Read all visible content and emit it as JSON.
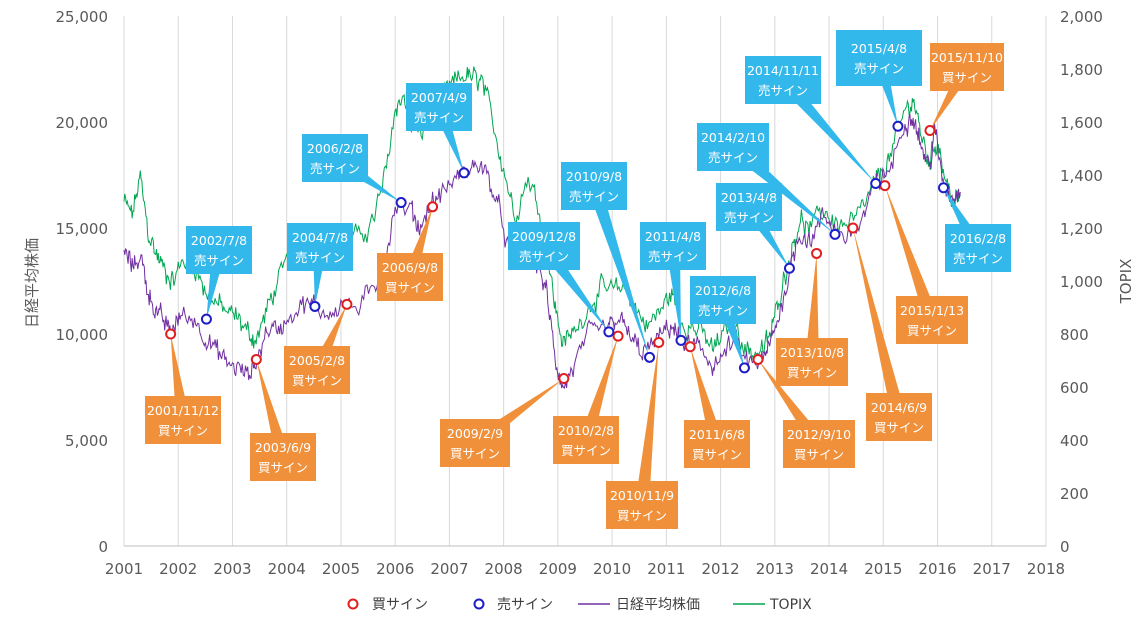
{
  "chart_data": {
    "type": "line",
    "xlabel": "",
    "ylabel_left": "日経平均株価",
    "ylabel_right": "TOPIX",
    "x_ticks": [
      "2001",
      "2002",
      "2003",
      "2004",
      "2005",
      "2006",
      "2007",
      "2008",
      "2009",
      "2010",
      "2011",
      "2012",
      "2013",
      "2014",
      "2015",
      "2016",
      "2017",
      "2018"
    ],
    "xlim": [
      2001,
      2018
    ],
    "ylim_left": [
      0,
      25000
    ],
    "ylim_right": [
      0,
      2000
    ],
    "y_ticks_left": [
      "0",
      "5,000",
      "10,000",
      "15,000",
      "20,000",
      "25,000"
    ],
    "y_ticks_right": [
      "0",
      "200",
      "400",
      "600",
      "800",
      "1,000",
      "1,200",
      "1,400",
      "1,600",
      "1,800",
      "2,000"
    ],
    "grid": "vertical",
    "legend_position": "bottom",
    "legend": {
      "buy_label": "買サイン",
      "sell_label": "売サイン",
      "nikkei_label": "日経平均株価",
      "topix_label": "TOPIX"
    },
    "colors": {
      "nikkei": "#7030A0",
      "topix": "#00A651",
      "buy_marker": "#E02020",
      "sell_marker": "#1E1EC8",
      "buy_callout": "#F0903A",
      "sell_callout": "#33B8EC",
      "grid": "#D9D9D9"
    },
    "nikkei_series": {
      "name": "日経平均株価",
      "x": [
        2001.0,
        2001.15,
        2001.3,
        2001.45,
        2001.6,
        2001.75,
        2001.87,
        2002.05,
        2002.3,
        2002.5,
        2002.7,
        2002.9,
        2003.1,
        2003.3,
        2003.45,
        2003.65,
        2003.85,
        2004.05,
        2004.3,
        2004.5,
        2004.75,
        2005.0,
        2005.3,
        2005.6,
        2005.8,
        2006.0,
        2006.3,
        2006.45,
        2006.65,
        2006.85,
        2007.1,
        2007.35,
        2007.55,
        2007.75,
        2007.95,
        2008.2,
        2008.45,
        2008.65,
        2008.8,
        2008.95,
        2009.1,
        2009.3,
        2009.55,
        2009.8,
        2009.95,
        2010.1,
        2010.3,
        2010.5,
        2010.7,
        2010.9,
        2011.1,
        2011.25,
        2011.45,
        2011.65,
        2011.85,
        2012.0,
        2012.25,
        2012.45,
        2012.6,
        2012.8,
        2012.95,
        2013.1,
        2013.3,
        2013.45,
        2013.65,
        2013.9,
        2014.1,
        2014.35,
        2014.6,
        2014.8,
        2014.95,
        2015.15,
        2015.4,
        2015.55,
        2015.7,
        2015.85,
        2015.95,
        2016.1,
        2016.25,
        2016.42
      ],
      "values": [
        13900,
        13200,
        13700,
        12000,
        11000,
        10500,
        10100,
        10900,
        10700,
        9900,
        9200,
        8600,
        8400,
        8000,
        8800,
        10300,
        10200,
        10900,
        11400,
        11300,
        11000,
        11400,
        11200,
        12000,
        13300,
        16000,
        15800,
        15000,
        16100,
        16600,
        17300,
        17700,
        18100,
        17200,
        15500,
        13000,
        13800,
        13200,
        11800,
        8800,
        7400,
        8500,
        9900,
        10200,
        10300,
        10800,
        10000,
        9200,
        9300,
        9900,
        10500,
        9600,
        9500,
        9200,
        8600,
        8700,
        9800,
        8700,
        8600,
        8700,
        9800,
        11100,
        13300,
        14800,
        14400,
        15500,
        15000,
        14600,
        15300,
        16700,
        17300,
        17900,
        20000,
        20400,
        18900,
        17800,
        19600,
        17200,
        16500,
        16700
      ]
    },
    "topix_series": {
      "name": "TOPIX",
      "x": [
        2001.0,
        2001.15,
        2001.3,
        2001.45,
        2001.6,
        2001.75,
        2001.9,
        2002.1,
        2002.3,
        2002.5,
        2002.7,
        2002.9,
        2003.1,
        2003.3,
        2003.45,
        2003.65,
        2003.85,
        2004.1,
        2004.3,
        2004.5,
        2004.75,
        2005.0,
        2005.3,
        2005.6,
        2005.8,
        2006.0,
        2006.15,
        2006.3,
        2006.5,
        2006.7,
        2006.9,
        2007.1,
        2007.3,
        2007.45,
        2007.6,
        2007.8,
        2008.0,
        2008.2,
        2008.45,
        2008.65,
        2008.8,
        2008.95,
        2009.1,
        2009.3,
        2009.55,
        2009.8,
        2010.0,
        2010.25,
        2010.45,
        2010.65,
        2010.9,
        2011.1,
        2011.25,
        2011.45,
        2011.65,
        2011.85,
        2012.0,
        2012.25,
        2012.45,
        2012.6,
        2012.8,
        2012.95,
        2013.1,
        2013.3,
        2013.45,
        2013.65,
        2013.9,
        2014.1,
        2014.35,
        2014.6,
        2014.8,
        2014.95,
        2015.15,
        2015.4,
        2015.55,
        2015.7,
        2015.85,
        2016.0,
        2016.15,
        2016.3,
        2016.42
      ],
      "values": [
        1300,
        1250,
        1390,
        1180,
        1100,
        1040,
        1000,
        1080,
        1060,
        960,
        920,
        880,
        860,
        800,
        780,
        900,
        1000,
        1110,
        1160,
        1140,
        1120,
        1170,
        1160,
        1230,
        1380,
        1650,
        1700,
        1580,
        1560,
        1640,
        1700,
        1750,
        1780,
        1760,
        1750,
        1600,
        1430,
        1250,
        1390,
        1280,
        1120,
        900,
        760,
        810,
        900,
        970,
        960,
        980,
        890,
        830,
        890,
        960,
        850,
        830,
        810,
        740,
        780,
        850,
        750,
        730,
        740,
        820,
        960,
        1110,
        1230,
        1190,
        1270,
        1220,
        1210,
        1260,
        1350,
        1400,
        1480,
        1640,
        1690,
        1550,
        1450,
        1540,
        1380,
        1290,
        1320
      ]
    },
    "buy_signals": [
      {
        "date": "2001/11/12",
        "label": "買サイン",
        "x": 2001.86,
        "value": 10000
      },
      {
        "date": "2003/6/9",
        "label": "買サイン",
        "x": 2003.44,
        "value": 8800
      },
      {
        "date": "2005/2/8",
        "label": "買サイン",
        "x": 2005.11,
        "value": 11400
      },
      {
        "date": "2006/9/8",
        "label": "買サイン",
        "x": 2006.69,
        "value": 16000
      },
      {
        "date": "2009/2/9",
        "label": "買サイン",
        "x": 2009.11,
        "value": 7900
      },
      {
        "date": "2010/2/8",
        "label": "買サイン",
        "x": 2010.11,
        "value": 9900
      },
      {
        "date": "2010/11/9",
        "label": "買サイン",
        "x": 2010.86,
        "value": 9600
      },
      {
        "date": "2011/6/8",
        "label": "買サイン",
        "x": 2011.44,
        "value": 9400
      },
      {
        "date": "2012/9/10",
        "label": "買サイン",
        "x": 2012.69,
        "value": 8800
      },
      {
        "date": "2013/10/8",
        "label": "買サイン",
        "x": 2013.77,
        "value": 13800
      },
      {
        "date": "2014/6/9",
        "label": "買サイン",
        "x": 2014.44,
        "value": 15000
      },
      {
        "date": "2015/1/13",
        "label": "買サイン",
        "x": 2015.03,
        "value": 17000
      },
      {
        "date": "2015/11/10",
        "label": "買サイン",
        "x": 2015.86,
        "value": 19600
      }
    ],
    "sell_signals": [
      {
        "date": "2002/7/8",
        "label": "売サイン",
        "x": 2002.52,
        "value": 10700
      },
      {
        "date": "2004/7/8",
        "label": "売サイン",
        "x": 2004.52,
        "value": 11300
      },
      {
        "date": "2006/2/8",
        "label": "売サイン",
        "x": 2006.11,
        "value": 16200
      },
      {
        "date": "2007/4/9",
        "label": "売サイン",
        "x": 2007.27,
        "value": 17600
      },
      {
        "date": "2009/12/8",
        "label": "売サイン",
        "x": 2009.94,
        "value": 10100
      },
      {
        "date": "2010/9/8",
        "label": "売サイン",
        "x": 2010.69,
        "value": 8900
      },
      {
        "date": "2011/4/8",
        "label": "売サイン",
        "x": 2011.27,
        "value": 9700
      },
      {
        "date": "2012/6/8",
        "label": "売サイン",
        "x": 2012.44,
        "value": 8400
      },
      {
        "date": "2013/4/8",
        "label": "売サイン",
        "x": 2013.27,
        "value": 13100
      },
      {
        "date": "2014/2/10",
        "label": "売サイン",
        "x": 2014.11,
        "value": 14700
      },
      {
        "date": "2014/11/11",
        "label": "売サイン",
        "x": 2014.86,
        "value": 17100
      },
      {
        "date": "2015/4/8",
        "label": "売サイン",
        "x": 2015.27,
        "value": 19800
      },
      {
        "date": "2016/2/8",
        "label": "売サイン",
        "x": 2016.11,
        "value": 16900
      }
    ]
  }
}
